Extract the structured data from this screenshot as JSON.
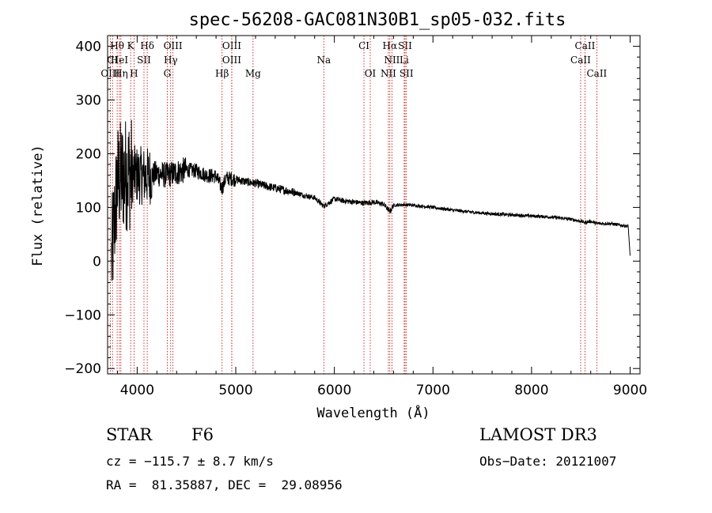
{
  "chart_data": {
    "type": "line",
    "title": "spec-56208-GAC081N30B1_sp05-032.fits",
    "xlabel": "Wavelength (Å)",
    "ylabel": "Flux (relative)",
    "xlim": [
      3700,
      9100
    ],
    "ylim": [
      -210,
      420
    ],
    "xticks": [
      4000,
      5000,
      6000,
      7000,
      8000,
      9000
    ],
    "yticks": [
      -200,
      -100,
      0,
      100,
      200,
      300,
      400
    ],
    "xtick_labels": [
      "4000",
      "5000",
      "6000",
      "7000",
      "8000",
      "9000"
    ],
    "ytick_labels": [
      "−200",
      "−100",
      "0",
      "100",
      "200",
      "300",
      "400"
    ],
    "spectrum_anchors": {
      "x": [
        3740,
        3800,
        3900,
        4000,
        4100,
        4200,
        4300,
        4400,
        4500,
        4600,
        4700,
        4800,
        4861,
        4900,
        5000,
        5100,
        5200,
        5300,
        5400,
        5500,
        5600,
        5700,
        5800,
        5893,
        6000,
        6100,
        6200,
        6300,
        6400,
        6500,
        6563,
        6600,
        6700,
        6800,
        7000,
        7200,
        7400,
        7600,
        7800,
        8000,
        8200,
        8400,
        8500,
        8542,
        8600,
        8662,
        8800,
        8900,
        8980,
        9000
      ],
      "y": [
        0,
        150,
        165,
        160,
        158,
        163,
        160,
        165,
        170,
        168,
        160,
        158,
        135,
        155,
        152,
        148,
        145,
        140,
        136,
        132,
        128,
        122,
        118,
        102,
        116,
        112,
        110,
        108,
        110,
        106,
        92,
        104,
        105,
        104,
        100,
        95,
        91,
        88,
        86,
        84,
        82,
        78,
        74,
        72,
        74,
        70,
        70,
        67,
        65,
        10
      ]
    },
    "spectral_lines": [
      {
        "label": "Hθ",
        "wavelength": 3797,
        "row": 0
      },
      {
        "label": "K",
        "wavelength": 3934,
        "row": 0
      },
      {
        "label": "Hδ",
        "wavelength": 4102,
        "row": 0
      },
      {
        "label": "OIII",
        "wavelength": 4363,
        "row": 0
      },
      {
        "label": "OIII",
        "wavelength": 4959,
        "row": 0
      },
      {
        "label": "CI",
        "wavelength": 6300,
        "row": 0
      },
      {
        "label": "Hα",
        "wavelength": 6563,
        "row": 0
      },
      {
        "label": "SII",
        "wavelength": 6717,
        "row": 0
      },
      {
        "label": "CaII",
        "wavelength": 8542,
        "row": 0
      },
      {
        "label": "CI",
        "wavelength": 3750,
        "row": 1
      },
      {
        "label": "HeI",
        "wavelength": 3820,
        "row": 1
      },
      {
        "label": "SII",
        "wavelength": 4069,
        "row": 1
      },
      {
        "label": "Hγ",
        "wavelength": 4340,
        "row": 1
      },
      {
        "label": "OIII",
        "wavelength": 4959,
        "row": 1
      },
      {
        "label": "Na",
        "wavelength": 5893,
        "row": 1
      },
      {
        "label": "NII",
        "wavelength": 6584,
        "row": 1
      },
      {
        "label": "Li",
        "wavelength": 6708,
        "row": 1
      },
      {
        "label": "CaII",
        "wavelength": 8498,
        "row": 1
      },
      {
        "label": "OIII",
        "wavelength": 3727,
        "row": 2
      },
      {
        "label": "Hη",
        "wavelength": 3835,
        "row": 2
      },
      {
        "label": "H",
        "wavelength": 3968,
        "row": 2
      },
      {
        "label": "G",
        "wavelength": 4305,
        "row": 2
      },
      {
        "label": "Hβ",
        "wavelength": 4861,
        "row": 2
      },
      {
        "label": "Mg",
        "wavelength": 5175,
        "row": 2
      },
      {
        "label": "OI",
        "wavelength": 6364,
        "row": 2
      },
      {
        "label": "NII",
        "wavelength": 6548,
        "row": 2
      },
      {
        "label": "SII",
        "wavelength": 6731,
        "row": 2
      },
      {
        "label": "CaII",
        "wavelength": 8662,
        "row": 2
      }
    ]
  },
  "footer": {
    "object_class": "STAR",
    "subclass": "F6",
    "survey": "LAMOST DR3",
    "redshift": "cz = −115.7 ± 8.7 km/s",
    "obs_date": "Obs−Date: 20121007",
    "coords": "RA =  81.35887, DEC =  29.08956"
  }
}
